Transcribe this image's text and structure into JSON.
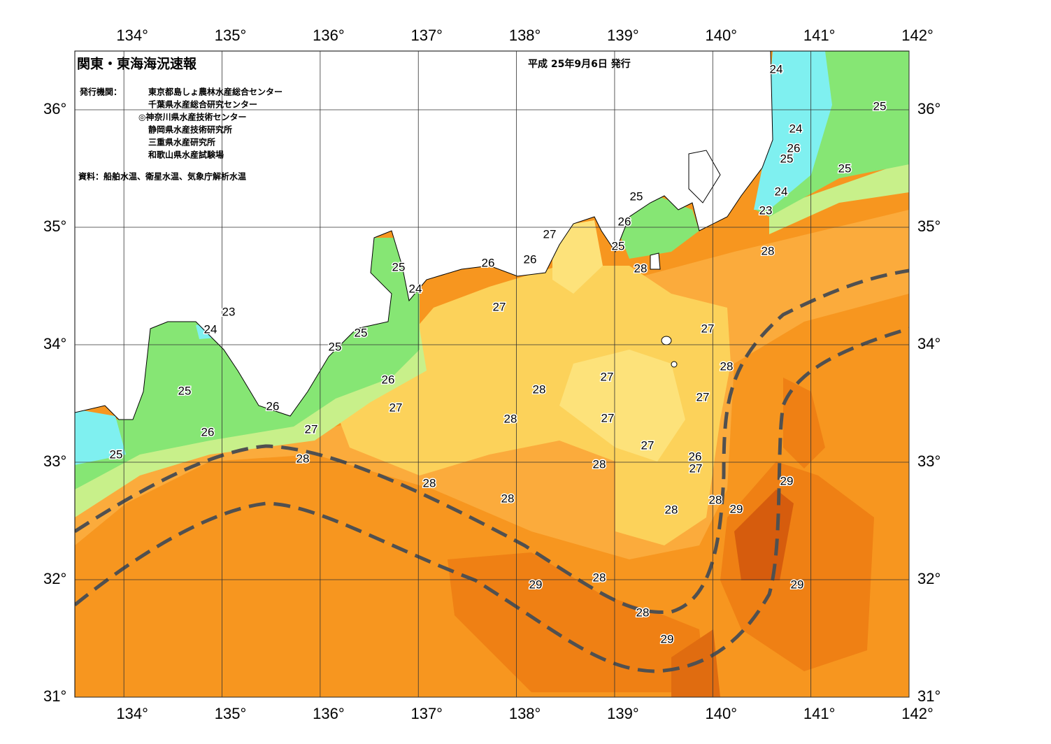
{
  "header": {
    "title": "関東・東海海況速報",
    "date": "平成 25年9月6日 発行",
    "issuer_label": "発行機関：",
    "issuers": [
      "東京都島しょ農林水産総合センター",
      "千葉県水産総合研究センター",
      "◎神奈川県水産技術センター",
      "静岡県水産技術研究所",
      "三重県水産研究所",
      "和歌山県水産試験場"
    ],
    "source": "資料：船舶水温、衛星水温、気象庁解析水温"
  },
  "map": {
    "lonlim": [
      133.5,
      142
    ],
    "latlim": [
      31,
      36.5
    ],
    "lonticks": [
      {
        "value": 134,
        "label": "134°"
      },
      {
        "value": 135,
        "label": "135°"
      },
      {
        "value": 136,
        "label": "136°"
      },
      {
        "value": 137,
        "label": "137°"
      },
      {
        "value": 138,
        "label": "138°"
      },
      {
        "value": 139,
        "label": "139°"
      },
      {
        "value": 140,
        "label": "140°"
      },
      {
        "value": 141,
        "label": "141°"
      },
      {
        "value": 142,
        "label": "142°"
      }
    ],
    "latticks": [
      {
        "value": 31,
        "label": "31°"
      },
      {
        "value": 32,
        "label": "32°"
      },
      {
        "value": 33,
        "label": "33°"
      },
      {
        "value": 34,
        "label": "34°"
      },
      {
        "value": 35,
        "label": "35°"
      },
      {
        "value": 36,
        "label": "36°"
      }
    ],
    "isotherm_labels": [
      24,
      25,
      24,
      26,
      25,
      25,
      24,
      23,
      28,
      25,
      26,
      25,
      28,
      27,
      26,
      26,
      27,
      25,
      24,
      23,
      24,
      25,
      25,
      26,
      27,
      25,
      26,
      27,
      26,
      25,
      28,
      28,
      28,
      28,
      27,
      27,
      27,
      27,
      28,
      27,
      26,
      27,
      28,
      28,
      28,
      29,
      28,
      29,
      29,
      28,
      29,
      28,
      29
    ]
  }
}
